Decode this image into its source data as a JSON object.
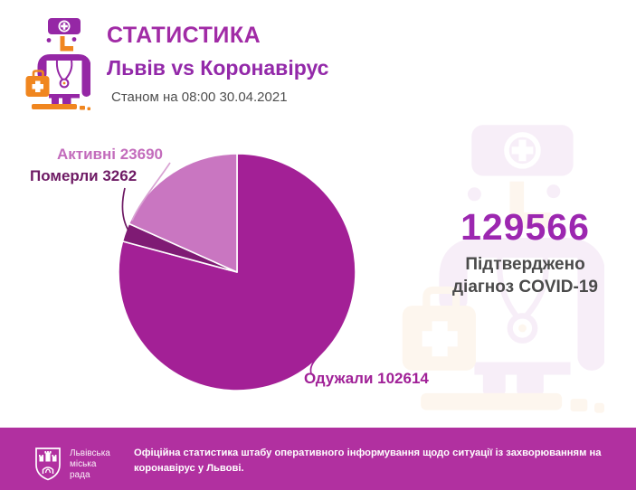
{
  "header": {
    "title": "СТАТИСТИКА",
    "subtitle": "Львів vs Коронавірус",
    "as_of": "Станом на 08:00 30.04.2021"
  },
  "confirmed": {
    "number": "129566",
    "caption_line1": "Підтверджено",
    "caption_line2": "діагноз COVID-19"
  },
  "pie_callout_labels": {
    "active": "Активні 23690",
    "died": "Померли 3262",
    "recovered": "Одужали 102614"
  },
  "footer": {
    "org_line1": "Львівська",
    "org_line2": "міська",
    "org_line3": "рада",
    "note_line1": "Офіційна статистика штабу оперативного інформування щодо ситуації із захворюванням на",
    "note_line2": "коронавірус у Львові."
  },
  "colors": {
    "title_magenta": "#a12ba6",
    "subtitle_purple": "#9329a9",
    "confirmed_purple": "#9c27b0",
    "slice_recovered": "#a32096",
    "slice_died": "#7f1b74",
    "slice_active": "#c976c1",
    "label_active": "#c36cbc",
    "label_died": "#6e1a64",
    "label_recovered": "#a02097",
    "footer_background": "#b130a0",
    "icon_purple": "#9527a5",
    "icon_orange": "#f0861f",
    "text_gray": "#4a4a4a"
  },
  "chart_data": {
    "type": "pie",
    "categories": [
      "Одужали",
      "Померли",
      "Активні"
    ],
    "keys": [
      "recovered",
      "died",
      "active"
    ],
    "values": [
      102614,
      3262,
      23690
    ],
    "colors": [
      "#a32096",
      "#7f1b74",
      "#c976c1"
    ],
    "total": 129566,
    "start_angle_deg": 0,
    "direction": "clockwise",
    "legend_position": "callout-labels",
    "grid": false
  }
}
